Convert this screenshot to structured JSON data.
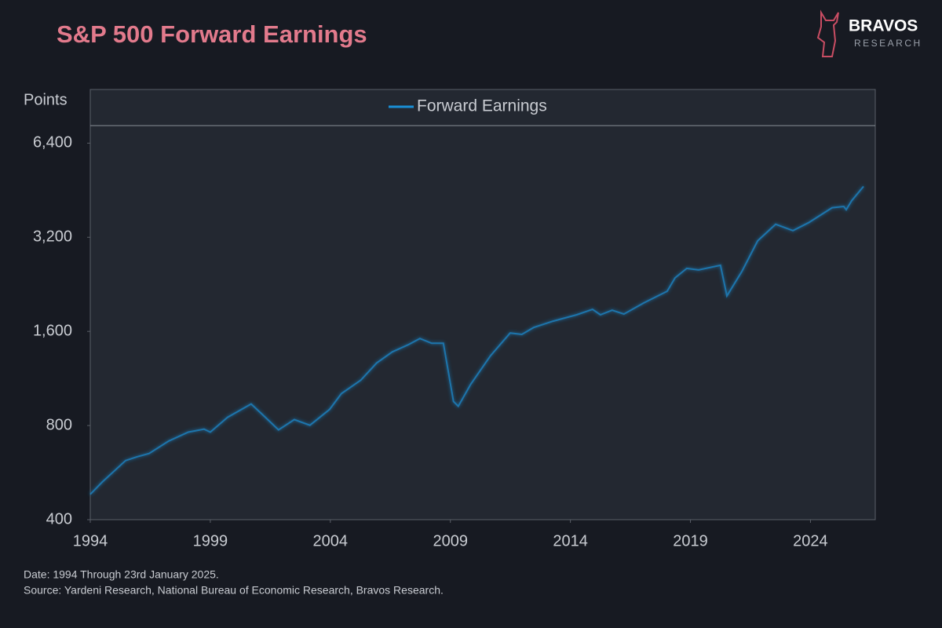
{
  "chart_data": {
    "type": "line",
    "title": "S&P 500 Forward Earnings",
    "y_label": "Points",
    "logo": {
      "name": "BRAVOS",
      "sub": "RESEARCH"
    },
    "notes": [
      "Date: 1994 Through 23rd January 2025.",
      "Source: Yardeni Research, National Bureau of Economic Research, Bravos Research."
    ],
    "log_y": true,
    "legend": "top",
    "x": [
      1994.0,
      1994.5,
      1995.47,
      1995.96,
      1996.45,
      1997.27,
      1998.08,
      1998.74,
      1999.0,
      1999.72,
      2000.7,
      2001.19,
      2001.84,
      2002.5,
      2003.15,
      2003.97,
      2004.46,
      2005.27,
      2005.93,
      2006.58,
      2007.24,
      2007.73,
      2008.22,
      2008.71,
      2009.13,
      2009.33,
      2009.85,
      2010.67,
      2011.49,
      2011.98,
      2012.47,
      2013.28,
      2014.26,
      2014.92,
      2015.25,
      2015.74,
      2016.23,
      2017.05,
      2018.03,
      2018.36,
      2018.85,
      2019.34,
      2020.25,
      2020.52,
      2021.14,
      2021.8,
      2022.55,
      2023.27,
      2023.92,
      2024.9,
      2025.39,
      2025.49,
      2025.72,
      2026.21
    ],
    "series": [
      {
        "name": "Forward Earnings",
        "color": "#1a8fd6",
        "values": [
          482,
          528,
          618,
          636,
          651,
          714,
          762,
          779,
          762,
          850,
          938,
          865,
          775,
          836,
          802,
          901,
          1012,
          1117,
          1268,
          1376,
          1450,
          1519,
          1466,
          1466,
          955,
          922,
          1085,
          1337,
          1581,
          1565,
          1647,
          1726,
          1808,
          1882,
          1808,
          1870,
          1818,
          1972,
          2151,
          2374,
          2545,
          2516,
          2604,
          2078,
          2487,
          3117,
          3521,
          3361,
          3562,
          3978,
          4015,
          3920,
          4191,
          4652
        ]
      }
    ],
    "xlim": [
      1994,
      2026.7
    ],
    "xticks": [
      1994,
      1999,
      2004,
      2009,
      2014,
      2019,
      2024
    ],
    "ylim": [
      400,
      9500
    ],
    "yticks": [
      400,
      800,
      {
        "value": 1600,
        "label": "1,600"
      },
      {
        "value": 3200,
        "label": "3,200"
      },
      {
        "value": 6400,
        "label": "6,400"
      }
    ]
  }
}
